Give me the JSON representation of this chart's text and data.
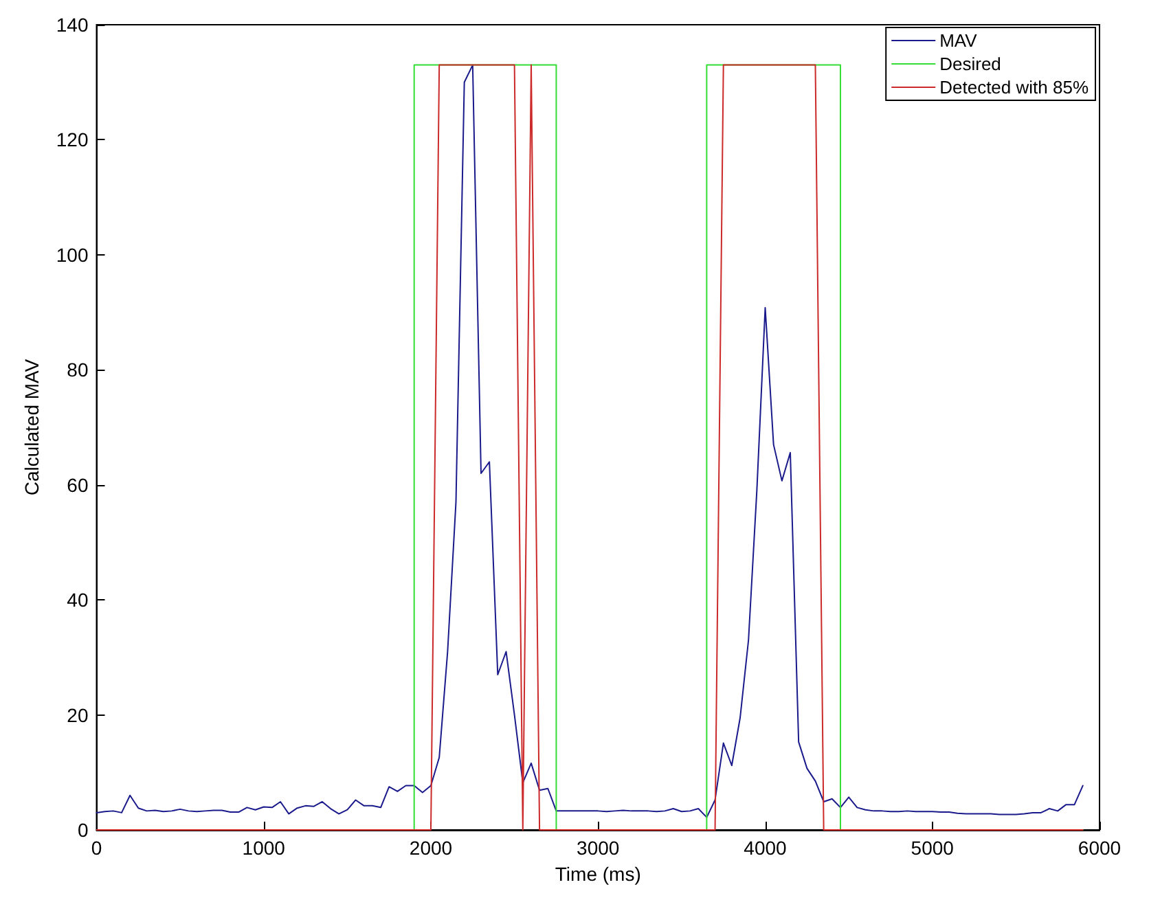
{
  "chart_data": {
    "type": "line",
    "xlabel": "Time (ms)",
    "ylabel": "Calculated MAV",
    "xlim": [
      0,
      6000
    ],
    "ylim": [
      0,
      140
    ],
    "xticks": [
      0,
      1000,
      2000,
      3000,
      4000,
      5000,
      6000
    ],
    "yticks": [
      0,
      20,
      40,
      60,
      80,
      100,
      120,
      140
    ],
    "grid": false,
    "legend": "top right",
    "marker": "none",
    "line_style": "solid",
    "series": [
      {
        "name": "MAV",
        "color": "#1a1a8c",
        "x": [
          0,
          50,
          100,
          150,
          200,
          250,
          300,
          350,
          400,
          450,
          500,
          550,
          600,
          650,
          700,
          750,
          800,
          850,
          900,
          950,
          1000,
          1050,
          1100,
          1150,
          1200,
          1250,
          1300,
          1350,
          1400,
          1450,
          1500,
          1550,
          1600,
          1650,
          1700,
          1750,
          1800,
          1850,
          1900,
          1950,
          2000,
          2050,
          2100,
          2150,
          2200,
          2250,
          2300,
          2350,
          2400,
          2450,
          2500,
          2550,
          2600,
          2650,
          2700,
          2750,
          2800,
          2850,
          2900,
          2950,
          3000,
          3050,
          3100,
          3150,
          3200,
          3250,
          3300,
          3350,
          3400,
          3450,
          3500,
          3550,
          3600,
          3650,
          3700,
          3750,
          3800,
          3850,
          3900,
          3950,
          4000,
          4050,
          4100,
          4150,
          4200,
          4250,
          4300,
          4350,
          4400,
          4450,
          4500,
          4550,
          4600,
          4650,
          4700,
          4750,
          4800,
          4850,
          4900,
          4950,
          5000,
          5050,
          5100,
          5150,
          5200,
          5250,
          5300,
          5350,
          5400,
          5450,
          5500,
          5550,
          5600,
          5650,
          5700,
          5750,
          5800,
          5850,
          5900
        ],
        "values": [
          3,
          3.2,
          3.3,
          3,
          6,
          3.8,
          3.3,
          3.4,
          3.2,
          3.3,
          3.6,
          3.3,
          3.2,
          3.3,
          3.4,
          3.4,
          3.1,
          3.1,
          3.9,
          3.5,
          4,
          3.9,
          4.9,
          2.8,
          3.8,
          4.2,
          4.1,
          4.9,
          3.7,
          2.8,
          3.5,
          5.2,
          4.2,
          4.2,
          3.9,
          7.5,
          6.7,
          7.7,
          7.7,
          6.5,
          7.7,
          12.6,
          31,
          57,
          130,
          133,
          62,
          64,
          27,
          31,
          20,
          8.2,
          11.6,
          6.9,
          7.2,
          3.3,
          3.3,
          3.3,
          3.3,
          3.3,
          3.3,
          3.2,
          3.3,
          3.4,
          3.3,
          3.3,
          3.3,
          3.2,
          3.3,
          3.7,
          3.2,
          3.3,
          3.7,
          2.2,
          5.2,
          15.1,
          11.2,
          19.5,
          33,
          59,
          90.8,
          67,
          60.7,
          65.6,
          15.3,
          10.7,
          8.5,
          4.9,
          5.4,
          3.9,
          5.7,
          3.9,
          3.5,
          3.3,
          3.3,
          3.2,
          3.2,
          3.3,
          3.2,
          3.2,
          3.2,
          3.1,
          3.1,
          2.9,
          2.8,
          2.8,
          2.8,
          2.8,
          2.7,
          2.7,
          2.7,
          2.8,
          3,
          3,
          3.7,
          3.3,
          4.4,
          4.4,
          7.7
        ]
      },
      {
        "name": "Desired",
        "color": "#33dd33",
        "x": [
          0,
          1900,
          1900,
          2750,
          2750,
          3650,
          3650,
          4450,
          4450,
          5900
        ],
        "values": [
          0,
          0,
          133,
          133,
          0,
          0,
          133,
          133,
          0,
          0
        ]
      },
      {
        "name": "Detected with 85%",
        "color": "#cc2a2a",
        "x": [
          0,
          2000,
          2050,
          2500,
          2550,
          2600,
          2650,
          3700,
          3750,
          4300,
          4350,
          5900
        ],
        "values": [
          0,
          0,
          133,
          133,
          0,
          133,
          0,
          0,
          133,
          133,
          0,
          0
        ]
      }
    ]
  }
}
